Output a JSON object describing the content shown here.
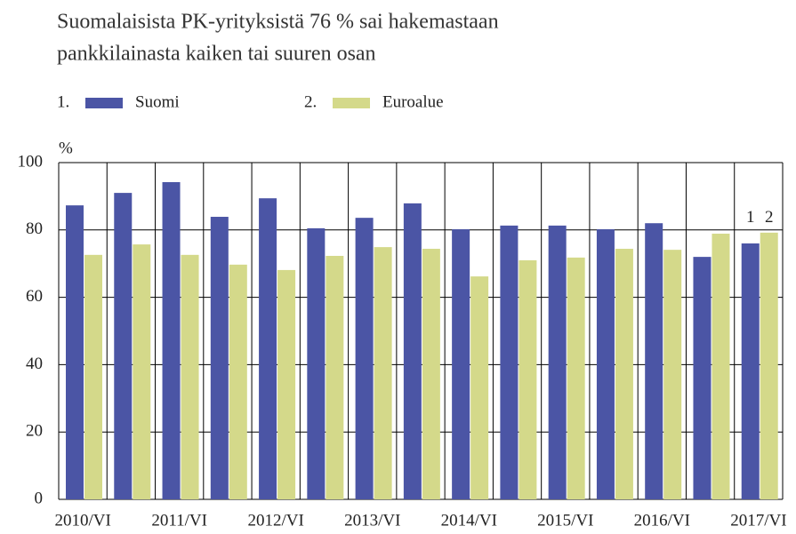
{
  "chart_data": {
    "type": "bar",
    "title": [
      "Suomalaisista PK-yrityksistä 76 % sai hakemastaan",
      "pankkilainasta kaiken tai suuren osan"
    ],
    "y_label": "%",
    "legend_numbers": [
      "1.",
      "2."
    ],
    "annotations": [
      "1",
      "2"
    ],
    "categories": [
      "2010/VI",
      null,
      "2011/VI",
      null,
      "2012/VI",
      null,
      "2013/VI",
      null,
      "2014/VI",
      null,
      "2015/VI",
      null,
      "2016/VI",
      null,
      "2017/VI"
    ],
    "series": [
      {
        "name": "Suomi",
        "color": "#4b55a5",
        "values": [
          87.3,
          91,
          94.2,
          83.9,
          89.4,
          80.5,
          83.6,
          87.9,
          80.2,
          81.3,
          81.3,
          80.2,
          82,
          72,
          76
        ]
      },
      {
        "name": "Euroalue",
        "color": "#d4d98a",
        "values": [
          72.6,
          75.7,
          72.6,
          69.7,
          68.1,
          72.3,
          74.9,
          74.4,
          66.2,
          71,
          71.8,
          74.4,
          74.1,
          78.9,
          79.2
        ]
      }
    ],
    "ylim": [
      0,
      100
    ],
    "yticks": [
      0,
      20,
      40,
      60,
      80,
      100
    ],
    "grid": true
  }
}
